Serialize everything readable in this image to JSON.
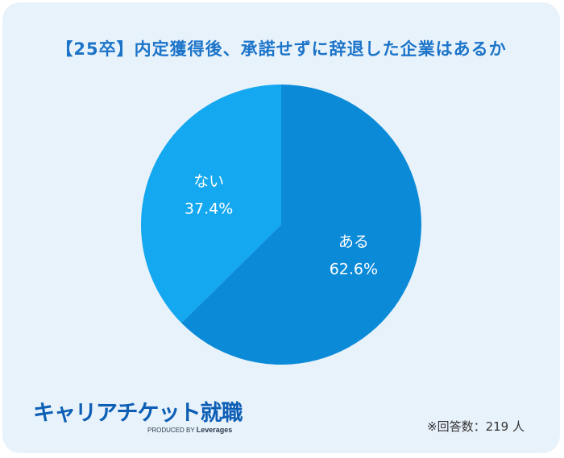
{
  "title": "【25卒】内定獲得後、承諾せずに辞退した企業はあるか",
  "chart_data": {
    "type": "pie",
    "title": "【25卒】内定獲得後、承諾せずに辞退した企業はあるか",
    "slices": [
      {
        "label": "ある",
        "value": 62.6,
        "display": "62.6%",
        "color": "#0b8ad8"
      },
      {
        "label": "ない",
        "value": 37.4,
        "display": "37.4%",
        "color": "#14a8f0"
      }
    ],
    "start": "12 o'clock",
    "direction": "clockwise"
  },
  "footer": {
    "logo_text": "キャリアチケット就職",
    "produced_by": "PRODUCED BY",
    "company": "Leverages",
    "respondents": "※回答数：219 人"
  }
}
